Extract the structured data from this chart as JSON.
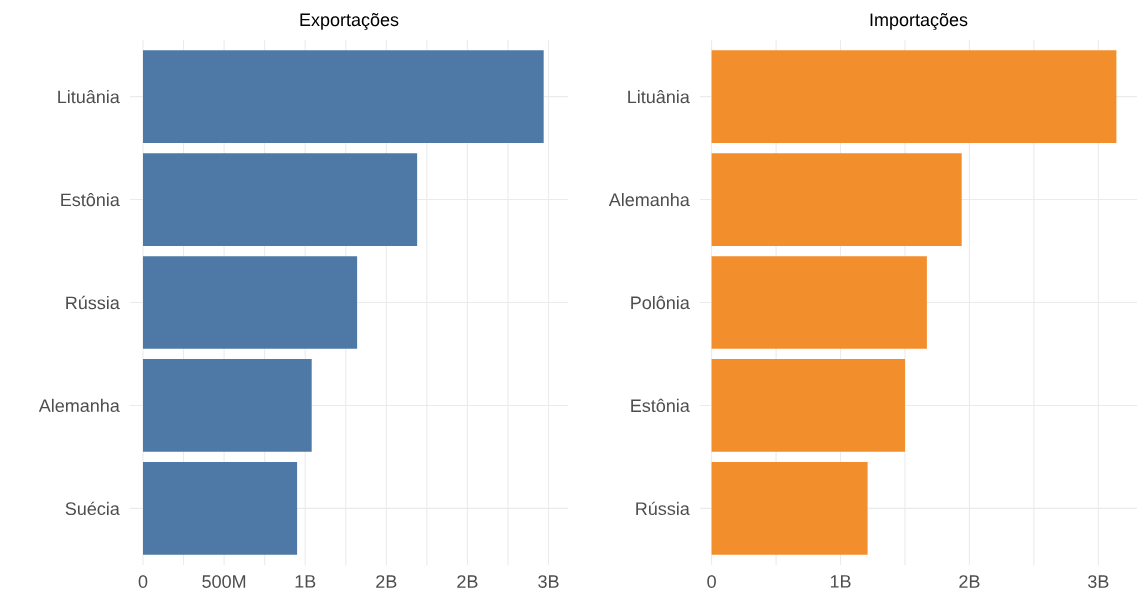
{
  "chart_data": [
    {
      "type": "bar",
      "orientation": "horizontal",
      "title": "Exportações",
      "color": "#4e79a7",
      "grid": true,
      "categories": [
        "Lituânia",
        "Estônia",
        "Rússia",
        "Alemanha",
        "Suécia"
      ],
      "values": [
        2470000000,
        1690000000,
        1320000000,
        1040000000,
        950000000
      ],
      "xlim": [
        -80000000,
        2620000000
      ],
      "xticks": [
        0,
        {
          "value": 250000000,
          "label": null
        },
        {
          "value": 500000000,
          "label": "500M"
        },
        {
          "value": 750000000,
          "label": null
        },
        {
          "value": 1000000000,
          "label": "1B"
        },
        {
          "value": 1250000000,
          "label": null
        },
        {
          "value": 1500000000,
          "label": "2B"
        },
        {
          "value": 1750000000,
          "label": null
        },
        {
          "value": 2000000000,
          "label": "2B"
        },
        {
          "value": 2250000000,
          "label": null
        },
        {
          "value": 2500000000,
          "label": "3B"
        }
      ]
    },
    {
      "type": "bar",
      "orientation": "horizontal",
      "title": "Importações",
      "color": "#f28e2b",
      "grid": true,
      "categories": [
        "Lituânia",
        "Alemanha",
        "Polônia",
        "Estônia",
        "Rússia"
      ],
      "values": [
        3140000000,
        1940000000,
        1670000000,
        1500000000,
        1210000000
      ],
      "xlim": [
        -90000000,
        3300000000
      ],
      "xticks": [
        0,
        {
          "value": 500000000,
          "label": null
        },
        {
          "value": 1000000000,
          "label": "1B"
        },
        {
          "value": 1500000000,
          "label": null
        },
        {
          "value": 2000000000,
          "label": "2B"
        },
        {
          "value": 2500000000,
          "label": null
        },
        {
          "value": 3000000000,
          "label": "3B"
        }
      ]
    }
  ]
}
